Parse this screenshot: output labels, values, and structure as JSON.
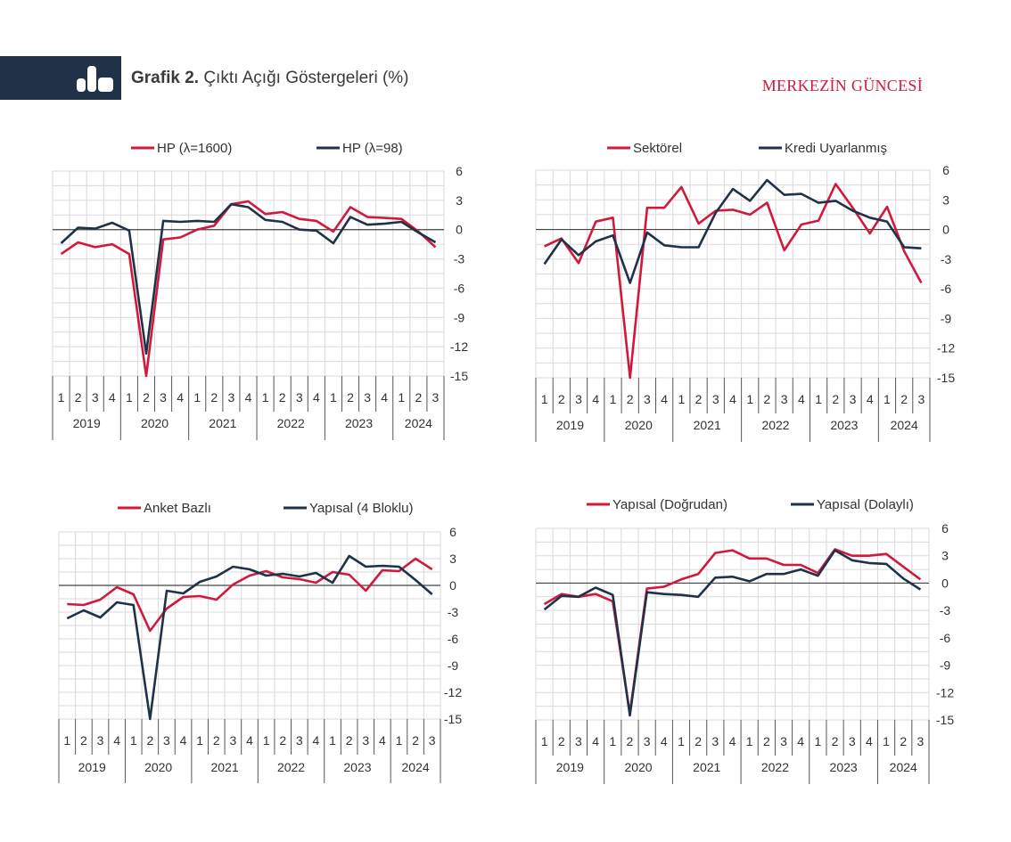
{
  "header": {
    "title_bold": "Grafik 2.",
    "title_rest": "Çıktı Açığı Göstergeleri (%)",
    "brand": "MERKEZİN GÜNCESİ",
    "icon": "bar-chart-icon"
  },
  "colors": {
    "series_red": "#d1193d",
    "series_navy": "#1f3247",
    "grid": "#d9d9d9"
  },
  "chart_data": [
    {
      "type": "line",
      "ylim": [
        -15,
        6
      ],
      "yticks": [
        "6",
        "3",
        "0",
        "-3",
        "-6",
        "-9",
        "-12",
        "-15"
      ],
      "quarters": [
        "1",
        "2",
        "3",
        "4",
        "1",
        "2",
        "3",
        "4",
        "1",
        "2",
        "3",
        "4",
        "1",
        "2",
        "3",
        "4",
        "1",
        "2",
        "3",
        "4",
        "1",
        "2",
        "3"
      ],
      "years": [
        "2019",
        "2020",
        "2021",
        "2022",
        "2023",
        "2024"
      ],
      "legend_position": "top",
      "grid": true,
      "series": [
        {
          "name": "HP (λ=1600)",
          "color": "#d1193d",
          "values": [
            -2.5,
            -1.3,
            -1.8,
            -1.5,
            -2.5,
            -15.0,
            -1.0,
            -0.8,
            0.0,
            0.4,
            2.6,
            2.9,
            1.6,
            1.8,
            1.1,
            0.9,
            -0.2,
            2.3,
            1.3,
            1.2,
            1.1,
            -0.2,
            -1.8
          ]
        },
        {
          "name": "HP (λ=98)",
          "color": "#1f3247",
          "values": [
            -1.4,
            0.2,
            0.1,
            0.7,
            -0.1,
            -12.7,
            0.9,
            0.8,
            0.9,
            0.8,
            2.6,
            2.3,
            1.0,
            0.8,
            0.0,
            -0.1,
            -1.4,
            1.3,
            0.5,
            0.6,
            0.8,
            -0.3,
            -1.3
          ]
        }
      ]
    },
    {
      "type": "line",
      "ylim": [
        -15,
        6
      ],
      "yticks": [
        "6",
        "3",
        "0",
        "-3",
        "-6",
        "-9",
        "-12",
        "-15"
      ],
      "quarters": [
        "1",
        "2",
        "3",
        "4",
        "1",
        "2",
        "3",
        "4",
        "1",
        "2",
        "3",
        "4",
        "1",
        "2",
        "3",
        "4",
        "1",
        "2",
        "3",
        "4",
        "1",
        "2",
        "3"
      ],
      "years": [
        "2019",
        "2020",
        "2021",
        "2022",
        "2023",
        "2024"
      ],
      "legend_position": "top",
      "grid": true,
      "series": [
        {
          "name": "Sektörel",
          "color": "#d1193d",
          "values": [
            -1.7,
            -0.9,
            -3.4,
            0.8,
            1.2,
            -15.0,
            2.2,
            2.2,
            4.3,
            0.6,
            1.9,
            2.0,
            1.5,
            2.7,
            -2.1,
            0.5,
            0.9,
            4.6,
            2.2,
            -0.4,
            2.3,
            -2.2,
            -5.4
          ]
        },
        {
          "name": "Kredi Uyarlanmış",
          "color": "#1f3247",
          "values": [
            -3.5,
            -1.0,
            -2.6,
            -1.2,
            -0.6,
            -5.4,
            -0.3,
            -1.6,
            -1.8,
            -1.8,
            1.7,
            4.1,
            2.9,
            5.0,
            3.5,
            3.6,
            2.7,
            2.9,
            1.9,
            1.2,
            0.8,
            -1.8,
            -1.9
          ]
        }
      ]
    },
    {
      "type": "line",
      "ylim": [
        -15,
        6
      ],
      "yticks": [
        "6",
        "3",
        "0",
        "-3",
        "-6",
        "-9",
        "-12",
        "-15"
      ],
      "quarters": [
        "1",
        "2",
        "3",
        "4",
        "1",
        "2",
        "3",
        "4",
        "1",
        "2",
        "3",
        "4",
        "1",
        "2",
        "3",
        "4",
        "1",
        "2",
        "3",
        "4",
        "1",
        "2",
        "3"
      ],
      "years": [
        "2019",
        "2020",
        "2021",
        "2022",
        "2023",
        "2024"
      ],
      "legend_position": "top",
      "grid": true,
      "series": [
        {
          "name": "Anket Bazlı",
          "color": "#d1193d",
          "values": [
            -2.1,
            -2.2,
            -1.6,
            -0.2,
            -1.0,
            -5.1,
            -2.6,
            -1.3,
            -1.2,
            -1.6,
            0.1,
            1.1,
            1.6,
            0.9,
            0.7,
            0.3,
            1.5,
            1.2,
            -0.6,
            1.7,
            1.6,
            3.0,
            1.8
          ]
        },
        {
          "name": "Yapısal (4 Bloklu)",
          "color": "#1f3247",
          "values": [
            -3.7,
            -2.8,
            -3.6,
            -1.9,
            -2.2,
            -15.0,
            -0.6,
            -0.9,
            0.4,
            1.0,
            2.1,
            1.8,
            1.1,
            1.3,
            1.0,
            1.4,
            0.3,
            3.3,
            2.1,
            2.2,
            2.1,
            0.6,
            -1.0
          ]
        }
      ]
    },
    {
      "type": "line",
      "ylim": [
        -15,
        6
      ],
      "yticks": [
        "6",
        "3",
        "0",
        "-3",
        "-6",
        "-9",
        "-12",
        "-15"
      ],
      "quarters": [
        "1",
        "2",
        "3",
        "4",
        "1",
        "2",
        "3",
        "4",
        "1",
        "2",
        "3",
        "4",
        "1",
        "2",
        "3",
        "4",
        "1",
        "2",
        "3",
        "4",
        "1",
        "2",
        "3"
      ],
      "years": [
        "2019",
        "2020",
        "2021",
        "2022",
        "2023",
        "2024"
      ],
      "legend_position": "top",
      "grid": true,
      "series": [
        {
          "name": "Yapısal (Doğrudan)",
          "color": "#d1193d",
          "values": [
            -2.3,
            -1.2,
            -1.5,
            -1.2,
            -2.0,
            -14.3,
            -0.6,
            -0.4,
            0.4,
            1.0,
            3.3,
            3.6,
            2.7,
            2.7,
            2.0,
            2.0,
            1.1,
            3.7,
            3.0,
            3.0,
            3.2,
            1.8,
            0.4
          ]
        },
        {
          "name": "Yapısal (Dolaylı)",
          "color": "#1f3247",
          "values": [
            -2.9,
            -1.4,
            -1.5,
            -0.5,
            -1.3,
            -14.5,
            -1.0,
            -1.2,
            -1.3,
            -1.5,
            0.6,
            0.7,
            0.2,
            1.0,
            1.0,
            1.5,
            0.8,
            3.6,
            2.5,
            2.2,
            2.1,
            0.5,
            -0.7
          ]
        }
      ]
    }
  ]
}
